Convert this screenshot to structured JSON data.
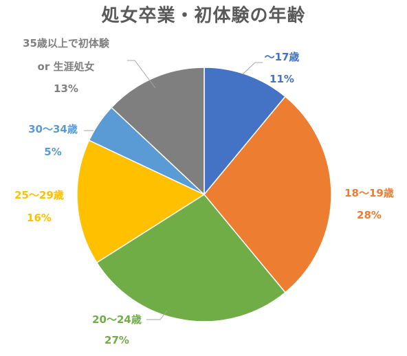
{
  "chart_data": {
    "type": "pie",
    "title": "処女卒業・初体験の年齢",
    "slices": [
      {
        "label": "～17歳",
        "percent_label": "11%",
        "value": 11,
        "color": "#4472C4"
      },
      {
        "label": "18～19歳",
        "percent_label": "28%",
        "value": 28,
        "color": "#ED7D31"
      },
      {
        "label": "20～24歳",
        "percent_label": "27%",
        "value": 27,
        "color": "#70AD47"
      },
      {
        "label": "25～29歳",
        "percent_label": "16%",
        "value": 16,
        "color": "#FFC000"
      },
      {
        "label": "30～34歳",
        "percent_label": "5%",
        "value": 5,
        "color": "#5B9BD5"
      },
      {
        "label": "35歳以上で初体験\nor 生涯処女",
        "percent_label": "13%",
        "value": 13,
        "color": "#7F7F7F"
      }
    ],
    "start_angle": "12 o'clock",
    "direction": "clockwise",
    "legend": "none (data labels outside slices)"
  }
}
